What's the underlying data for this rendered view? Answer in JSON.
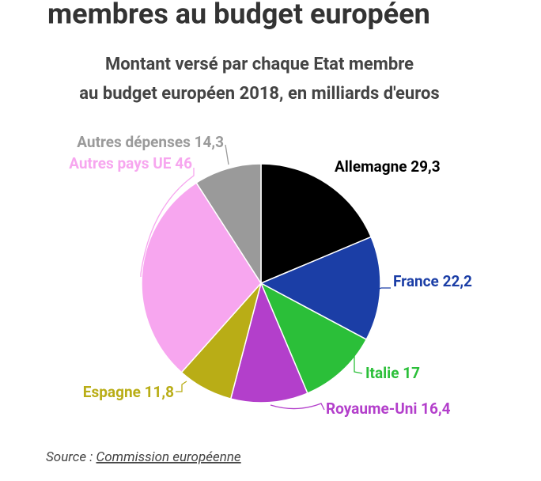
{
  "chart_data": {
    "type": "pie",
    "title": "membres au budget européen",
    "subtitle": [
      "Montant versé par chaque Etat membre",
      "au budget européen 2018, en milliards d'euros"
    ],
    "categories": [
      "Allemagne",
      "France",
      "Italie",
      "Royaume-Uni",
      "Espagne",
      "Autres pays UE",
      "Autres dépenses"
    ],
    "values": [
      29.3,
      22.2,
      17,
      16.4,
      11.8,
      46,
      14.3
    ],
    "value_labels": [
      "29,3",
      "22,2",
      "17",
      "16,4",
      "11,8",
      "46",
      "14,3"
    ],
    "colors": [
      "#000000",
      "#1b3ea6",
      "#2bbf39",
      "#b33fcb",
      "#b9ad16",
      "#f7a6ef",
      "#9a9a9a"
    ],
    "label_colors": [
      "#000000",
      "#1b3ea6",
      "#2bbf39",
      "#b33fcb",
      "#b9ad16",
      "#f7a6ef",
      "#9a9a9a"
    ],
    "source_prefix": "Source : ",
    "source_link": "Commission européenne"
  }
}
